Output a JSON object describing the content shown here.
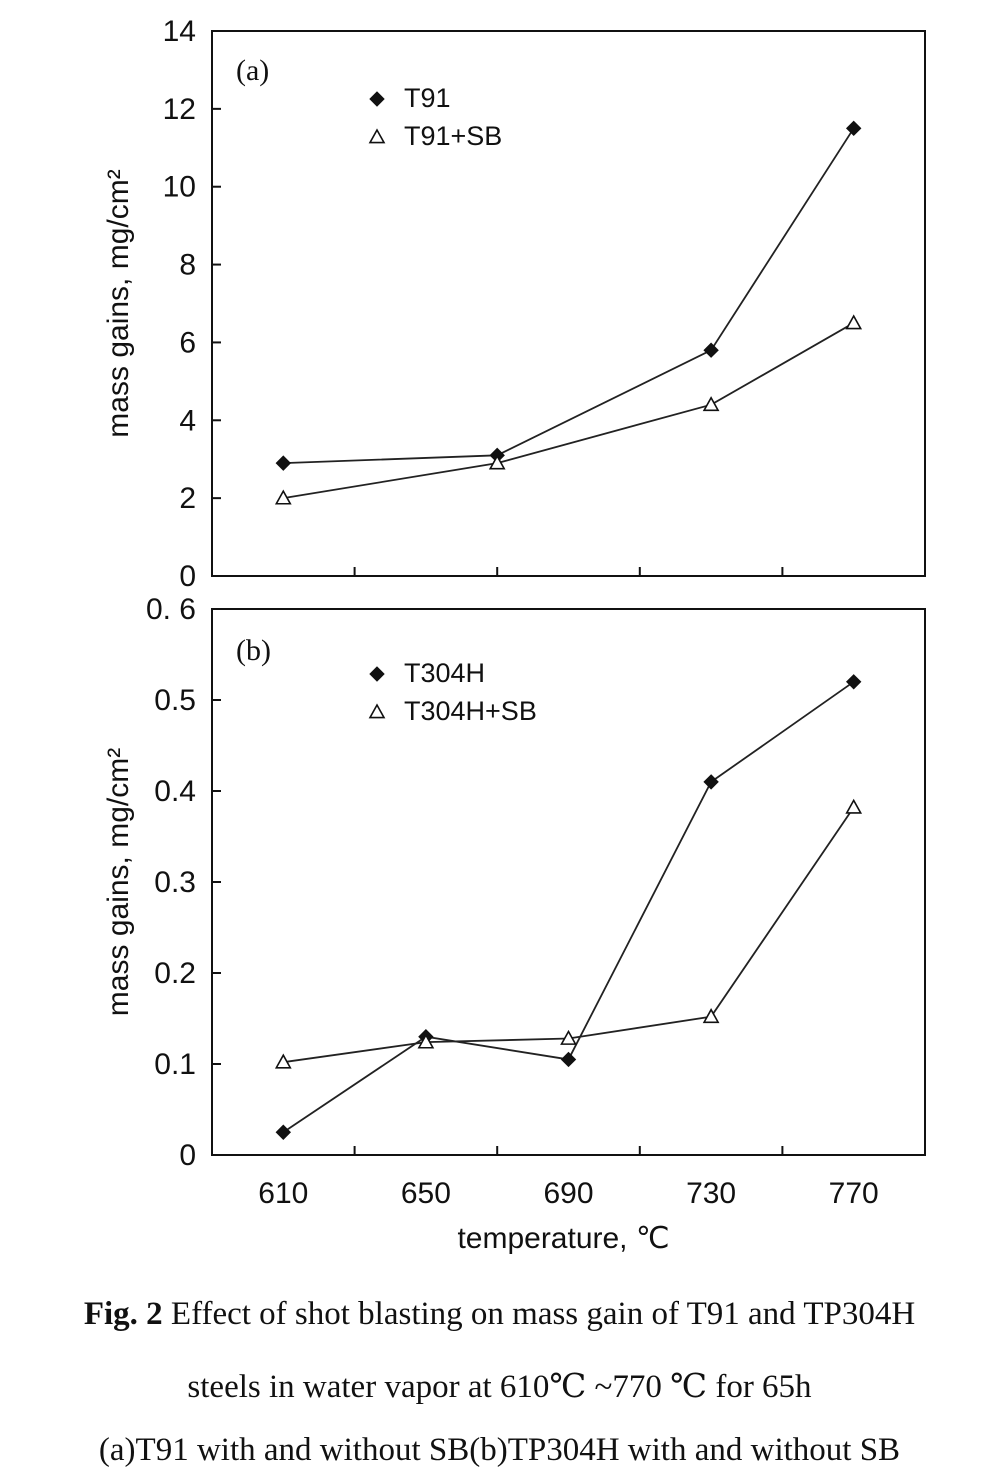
{
  "chart_data": [
    {
      "type": "line",
      "panel_label": "(a)",
      "ylabel": "mass gains, mg/cm²",
      "ylim": [
        0,
        14
      ],
      "yticks": [
        "0",
        "2",
        "4",
        "6",
        "8",
        "10",
        "12",
        "14"
      ],
      "xlim": [
        590,
        790
      ],
      "series": [
        {
          "name": "T91",
          "marker": "filled-diamond",
          "x": [
            610,
            670,
            730,
            770
          ],
          "y": [
            2.9,
            3.1,
            5.8,
            11.5
          ]
        },
        {
          "name": "T91+SB",
          "marker": "open-triangle",
          "x": [
            610,
            670,
            730,
            770
          ],
          "y": [
            2.0,
            2.9,
            4.4,
            6.5
          ]
        }
      ],
      "legend_position": "top-left"
    },
    {
      "type": "line",
      "panel_label": "(b)",
      "ylabel": "mass gains, mg/cm²",
      "xlabel": "temperature, ℃",
      "ylim": [
        0,
        0.6
      ],
      "yticks": [
        "0",
        "0.1",
        "0.2",
        "0.3",
        "0.4",
        "0.5",
        "0. 6"
      ],
      "xticks": [
        "610",
        "650",
        "690",
        "730",
        "770"
      ],
      "xlim": [
        590,
        790
      ],
      "series": [
        {
          "name": "T304H",
          "marker": "filled-diamond",
          "x": [
            610,
            650,
            690,
            730,
            770
          ],
          "y": [
            0.025,
            0.13,
            0.105,
            0.41,
            0.52
          ]
        },
        {
          "name": "T304H+SB",
          "marker": "open-triangle",
          "x": [
            610,
            650,
            690,
            730,
            770
          ],
          "y": [
            0.102,
            0.124,
            0.128,
            0.152,
            0.382
          ]
        }
      ],
      "legend_position": "top-left"
    }
  ],
  "caption": {
    "fig_label": "Fig. 2",
    "line1": "Effect of shot blasting on mass gain of T91 and TP304H",
    "line2": "steels in water vapor at 610℃ ~770 ℃ for 65h",
    "line3": "(a)T91 with and without SB(b)TP304H with and without SB"
  }
}
